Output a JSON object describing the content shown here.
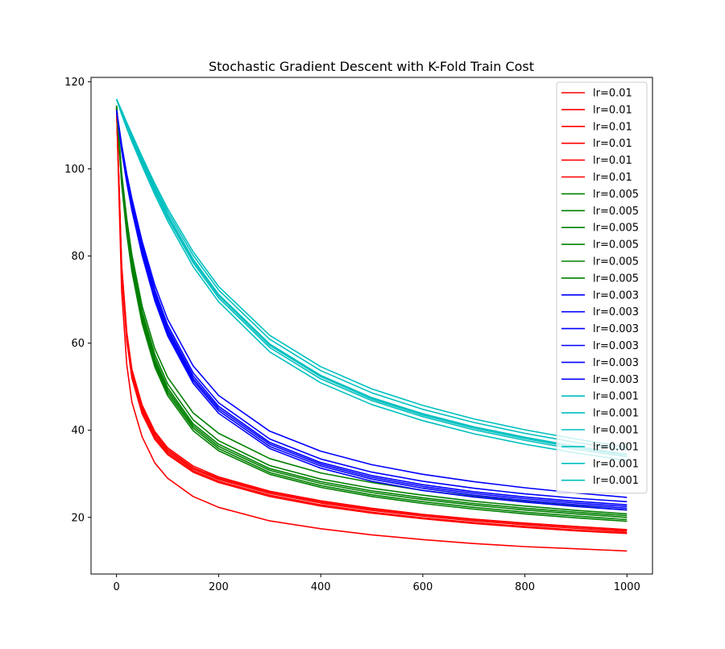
{
  "chart_data": {
    "type": "line",
    "title": "Stochastic Gradient Descent with K-Fold Train Cost",
    "xlabel": "",
    "ylabel": "",
    "xlim": [
      -50,
      1050
    ],
    "ylim": [
      7,
      121
    ],
    "xticks": [
      0,
      200,
      400,
      600,
      800,
      1000
    ],
    "yticks": [
      20,
      40,
      60,
      80,
      100,
      120
    ],
    "grid": false,
    "legend_position": "top-right",
    "x": [
      0,
      10,
      20,
      30,
      50,
      75,
      100,
      150,
      200,
      300,
      400,
      500,
      600,
      700,
      800,
      900,
      1000
    ],
    "series": [
      {
        "name": "lr=0.01",
        "color": "#ff0000",
        "values": [
          114,
          78,
          62.5,
          54,
          45.8,
          39.7,
          36,
          31.8,
          29.3,
          26,
          23.8,
          22.1,
          20.7,
          19.6,
          18.7,
          17.9,
          17.2
        ]
      },
      {
        "name": "lr=0.01",
        "color": "#ff0000",
        "values": [
          114,
          77,
          61.5,
          53,
          44.8,
          38.8,
          35.2,
          31.1,
          28.7,
          25.5,
          23.3,
          21.6,
          20.3,
          19.2,
          18.3,
          17.5,
          16.8
        ]
      },
      {
        "name": "lr=0.01",
        "color": "#ff0000",
        "values": [
          114,
          76.5,
          61,
          52.5,
          44.3,
          38.3,
          34.8,
          30.7,
          28.3,
          25.1,
          22.9,
          21.2,
          19.9,
          18.8,
          17.9,
          17.1,
          16.5
        ]
      },
      {
        "name": "lr=0.01",
        "color": "#ff0000",
        "values": [
          114,
          77.5,
          62,
          53.5,
          45.3,
          39.3,
          35.6,
          31.4,
          29,
          25.8,
          23.6,
          21.9,
          20.6,
          19.5,
          18.6,
          17.8,
          17.1
        ]
      },
      {
        "name": "lr=0.01",
        "color": "#ff0000",
        "values": [
          114,
          76,
          60.5,
          52,
          43.8,
          37.9,
          34.4,
          30.4,
          28,
          24.8,
          22.6,
          21,
          19.7,
          18.6,
          17.7,
          16.9,
          16.3
        ]
      },
      {
        "name": "lr=0.01",
        "color": "#ff0000",
        "values": [
          114,
          72,
          55,
          46.5,
          38.5,
          32.5,
          29,
          24.8,
          22.3,
          19.2,
          17.4,
          16,
          14.9,
          14,
          13.3,
          12.8,
          12.3
        ]
      },
      {
        "name": "lr=0.005",
        "color": "#008000",
        "values": [
          114.5,
          98,
          87,
          78.5,
          66.5,
          56.5,
          49.8,
          41.5,
          36.8,
          31.2,
          28.2,
          26.1,
          24.5,
          23.2,
          22.1,
          21.2,
          20.4
        ]
      },
      {
        "name": "lr=0.005",
        "color": "#008000",
        "values": [
          114.5,
          97.5,
          86.3,
          77.8,
          65.8,
          55.8,
          49.2,
          41,
          36.3,
          30.8,
          27.8,
          25.7,
          24.1,
          22.8,
          21.7,
          20.8,
          20
        ]
      },
      {
        "name": "lr=0.005",
        "color": "#008000",
        "values": [
          114.5,
          97,
          85.7,
          77.2,
          65.2,
          55.2,
          48.6,
          40.5,
          35.8,
          30.3,
          27.3,
          25.2,
          23.6,
          22.3,
          21.2,
          20.3,
          19.5
        ]
      },
      {
        "name": "lr=0.005",
        "color": "#008000",
        "values": [
          114.5,
          98.5,
          87.6,
          79.2,
          67.3,
          57.4,
          50.7,
          42.4,
          37.6,
          31.9,
          28.8,
          26.7,
          25.1,
          23.7,
          22.6,
          21.6,
          20.8
        ]
      },
      {
        "name": "lr=0.005",
        "color": "#008000",
        "values": [
          114.5,
          96.5,
          85,
          76.5,
          64.5,
          54.5,
          48,
          39.9,
          35.3,
          29.9,
          26.9,
          24.8,
          23.2,
          21.9,
          20.8,
          19.9,
          19.1
        ]
      },
      {
        "name": "lr=0.005",
        "color": "#008000",
        "values": [
          114.5,
          99,
          88.5,
          80.3,
          68.5,
          58.7,
          52.2,
          44,
          39.3,
          33.5,
          30.2,
          28,
          26.2,
          24.8,
          23.6,
          22.6,
          21.7
        ]
      },
      {
        "name": "lr=0.003",
        "color": "#0000ff",
        "values": [
          113.5,
          105,
          98,
          92,
          82,
          71.5,
          63.5,
          52.5,
          45.5,
          37.2,
          32.6,
          29.6,
          27.5,
          25.9,
          24.7,
          23.7,
          22.9
        ]
      },
      {
        "name": "lr=0.003",
        "color": "#0000ff",
        "values": [
          113.5,
          104.8,
          97.6,
          91.5,
          81.4,
          70.9,
          62.9,
          51.9,
          45,
          36.8,
          32.2,
          29.2,
          27.1,
          25.5,
          24.3,
          23.3,
          22.5
        ]
      },
      {
        "name": "lr=0.003",
        "color": "#0000ff",
        "values": [
          113.5,
          104.5,
          97.2,
          91,
          80.8,
          70.3,
          62.3,
          51.4,
          44.5,
          36.3,
          31.8,
          28.8,
          26.7,
          25.1,
          23.9,
          22.9,
          22.1
        ]
      },
      {
        "name": "lr=0.003",
        "color": "#0000ff",
        "values": [
          113.5,
          105.3,
          98.4,
          92.6,
          82.6,
          72.2,
          64.2,
          53.2,
          46.3,
          38,
          33.4,
          30.4,
          28.3,
          26.7,
          25.4,
          24.4,
          23.6
        ]
      },
      {
        "name": "lr=0.003",
        "color": "#0000ff",
        "values": [
          113.5,
          104.2,
          96.8,
          90.5,
          80.2,
          69.7,
          61.7,
          50.8,
          43.9,
          35.8,
          31.3,
          28.3,
          26.2,
          24.7,
          23.5,
          22.5,
          21.7
        ]
      },
      {
        "name": "lr=0.003",
        "color": "#0000ff",
        "values": [
          113.5,
          105.6,
          98.8,
          93.2,
          83.4,
          73.3,
          65.5,
          54.8,
          48,
          39.8,
          35.2,
          32.1,
          29.9,
          28.2,
          26.8,
          25.6,
          24.6
        ]
      },
      {
        "name": "lr=0.001",
        "color": "#00bfbf",
        "values": [
          116,
          113,
          110,
          107.2,
          101.8,
          95.4,
          89.5,
          79.3,
          71.2,
          59.8,
          52.6,
          47.5,
          43.8,
          40.8,
          38.4,
          36.3,
          34.5
        ]
      },
      {
        "name": "lr=0.001",
        "color": "#00bfbf",
        "values": [
          116,
          112.8,
          109.7,
          106.8,
          101.3,
          94.8,
          88.8,
          78.5,
          70.4,
          59,
          51.8,
          46.8,
          43.1,
          40.1,
          37.7,
          35.6,
          33.9
        ]
      },
      {
        "name": "lr=0.001",
        "color": "#00bfbf",
        "values": [
          116,
          113.2,
          110.3,
          107.6,
          102.3,
          96,
          90.2,
          80.2,
          72.2,
          60.9,
          53.7,
          48.6,
          44.8,
          41.8,
          39.3,
          37.2,
          35.4
        ]
      },
      {
        "name": "lr=0.001",
        "color": "#00bfbf",
        "values": [
          116,
          112.5,
          109.3,
          106.3,
          100.7,
          94.1,
          88.1,
          77.6,
          69.5,
          58,
          50.9,
          45.9,
          42.2,
          39.2,
          36.8,
          34.8,
          33.1
        ]
      },
      {
        "name": "lr=0.001",
        "color": "#00bfbf",
        "values": [
          116,
          113.4,
          110.6,
          108,
          102.8,
          96.6,
          90.9,
          81,
          73,
          61.8,
          54.6,
          49.5,
          45.7,
          42.6,
          40.1,
          38,
          36.1
        ]
      },
      {
        "name": "lr=0.001",
        "color": "#00bfbf",
        "values": [
          116,
          112.9,
          109.9,
          107,
          101.6,
          95.2,
          89.3,
          79,
          70.9,
          59.5,
          52.3,
          47.2,
          43.5,
          40.5,
          38.1,
          36,
          34.2
        ]
      }
    ]
  }
}
